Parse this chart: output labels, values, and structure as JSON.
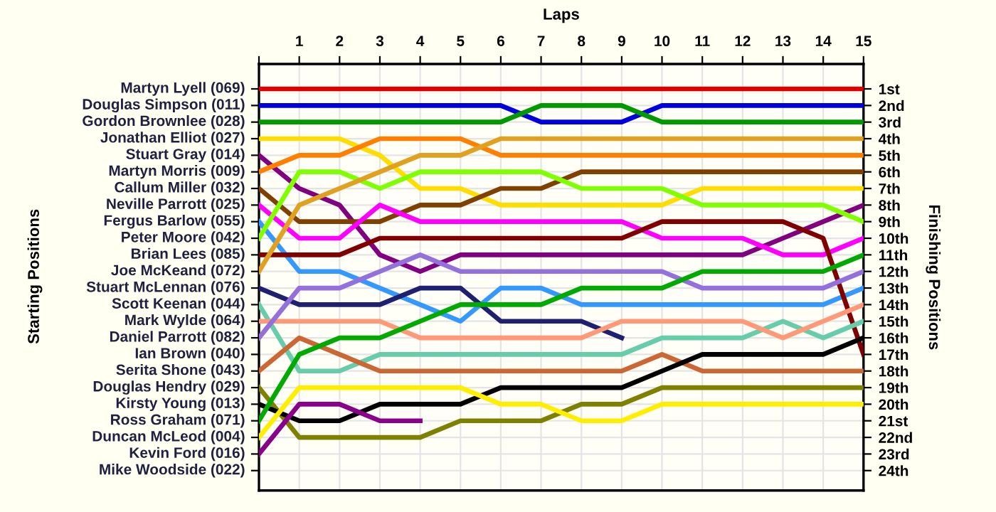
{
  "chart_data": {
    "type": "line",
    "xlabel": "Laps",
    "ylabel": "Finishing Positions",
    "x": [
      0,
      1,
      2,
      3,
      4,
      5,
      6,
      7,
      8,
      9,
      10,
      11,
      12,
      13,
      14,
      15
    ],
    "xlim": [
      0,
      15
    ],
    "xticks": [
      {
        "value": 0,
        "label": null
      },
      1,
      2,
      3,
      4,
      5,
      6,
      7,
      8,
      9,
      10,
      11,
      12,
      13,
      14,
      15
    ],
    "ylim": [
      25.2,
      -0.5
    ],
    "yticks": [
      {
        "value": 1,
        "label": "1st"
      },
      {
        "value": 2,
        "label": "2nd"
      },
      {
        "value": 3,
        "label": "3rd"
      },
      {
        "value": 4,
        "label": "4th"
      },
      {
        "value": 5,
        "label": "5th"
      },
      {
        "value": 6,
        "label": "6th"
      },
      {
        "value": 7,
        "label": "7th"
      },
      {
        "value": 8,
        "label": "8th"
      },
      {
        "value": 9,
        "label": "9th"
      },
      {
        "value": 10,
        "label": "10th"
      },
      {
        "value": 11,
        "label": "11th"
      },
      {
        "value": 12,
        "label": "12th"
      },
      {
        "value": 13,
        "label": "13th"
      },
      {
        "value": 14,
        "label": "14th"
      },
      {
        "value": 15,
        "label": "15th"
      },
      {
        "value": 16,
        "label": "16th"
      },
      {
        "value": 17,
        "label": "17th"
      },
      {
        "value": 18,
        "label": "18th"
      },
      {
        "value": 19,
        "label": "19th"
      },
      {
        "value": 20,
        "label": "20th"
      },
      {
        "value": 21,
        "label": "21st"
      },
      {
        "value": 22,
        "label": "22nd"
      },
      {
        "value": 23,
        "label": "23rd"
      },
      {
        "value": 24,
        "label": "24th"
      }
    ],
    "annotations": [
      "Starting Positions",
      "Martyn Lyell (069)",
      "Douglas Simpson (011)",
      "Gordon Brownlee (028)",
      "Jonathan Elliot (027)",
      "Stuart Gray (014)",
      "Martyn Morris (009)",
      "Callum Miller (032)",
      "Neville Parrott (025)",
      "Fergus Barlow (055)",
      "Peter Moore (042)",
      "Brian Lees (085)",
      "Joe McKeand (072)",
      "Stuart McLennan (076)",
      "Scott Keenan (044)",
      "Mark Wylde (064)",
      "Daniel Parrott (082)",
      "Ian Brown (040)",
      "Serita Shone (043)",
      "Douglas Hendry (029)",
      "Kirsty Young (013)",
      "Ross Graham (071)",
      "Duncan McLeod (004)",
      "Kevin Ford (016)",
      "Mike Woodside (022)"
    ],
    "grid": true,
    "marker": "none",
    "line_style": "solid",
    "series": [
      {
        "color": "#dd0000",
        "values": [
          1,
          1,
          1,
          1,
          1,
          1,
          1,
          1,
          1,
          1,
          1,
          1,
          1,
          1,
          1,
          1
        ]
      },
      {
        "color": "#0000dd",
        "values": [
          2,
          2,
          2,
          2,
          2,
          2,
          2,
          3,
          3,
          3,
          2,
          2,
          2,
          2,
          2,
          2
        ]
      },
      {
        "color": "#009900",
        "values": [
          3,
          3,
          3,
          3,
          3,
          3,
          3,
          2,
          2,
          2,
          3,
          3,
          3,
          3,
          3,
          3
        ]
      },
      {
        "color": "#ffdd00",
        "values": [
          4,
          4,
          4,
          5,
          7,
          7,
          8,
          8,
          8,
          8,
          8,
          7,
          7,
          7,
          7,
          7
        ]
      },
      {
        "color": "#800080",
        "values": [
          5,
          7,
          8,
          11,
          12,
          11,
          11,
          11,
          11,
          11,
          11,
          11,
          11,
          10,
          9,
          8
        ]
      },
      {
        "color": "#ff8000",
        "values": [
          6,
          5,
          5,
          4,
          4,
          4,
          5,
          5,
          5,
          5,
          5,
          5,
          5,
          5,
          5,
          5
        ]
      },
      {
        "color": "#804000",
        "values": [
          7,
          9,
          9,
          9,
          8,
          8,
          7,
          7,
          6,
          6,
          6,
          6,
          6,
          6,
          6,
          6
        ]
      },
      {
        "color": "#ff00ff",
        "values": [
          8,
          10,
          10,
          8,
          9,
          9,
          9,
          9,
          9,
          9,
          10,
          10,
          10,
          11,
          11,
          10
        ]
      },
      {
        "color": "#3399ff",
        "values": [
          9,
          12,
          12,
          13,
          14,
          15,
          13,
          13,
          14,
          14,
          14,
          14,
          14,
          14,
          14,
          13
        ]
      },
      {
        "color": "#80ff00",
        "values": [
          10,
          6,
          6,
          7,
          6,
          6,
          6,
          6,
          7,
          7,
          7,
          8,
          8,
          8,
          8,
          9
        ]
      },
      {
        "color": "#800000",
        "values": [
          11,
          11,
          11,
          10,
          10,
          10,
          10,
          10,
          10,
          10,
          9,
          9,
          9,
          9,
          10,
          17
        ]
      },
      {
        "color": "#e0a020",
        "values": [
          12,
          8,
          7,
          6,
          5,
          5,
          4,
          4,
          4,
          4,
          4,
          4,
          4,
          4,
          4,
          4
        ]
      },
      {
        "color": "#202070",
        "values": [
          13,
          14,
          14,
          14,
          13,
          13,
          15,
          15,
          15,
          16,
          null,
          null,
          null,
          null,
          null,
          null
        ]
      },
      {
        "color": "#66ccaa",
        "values": [
          14,
          18,
          18,
          17,
          17,
          17,
          17,
          17,
          17,
          17,
          16,
          16,
          16,
          15,
          16,
          15
        ]
      },
      {
        "color": "#ff9977",
        "values": [
          15,
          15,
          15,
          15,
          16,
          16,
          16,
          16,
          16,
          15,
          15,
          15,
          15,
          16,
          15,
          14
        ]
      },
      {
        "color": "#9370db",
        "values": [
          16,
          13,
          13,
          12,
          11,
          12,
          12,
          12,
          12,
          12,
          12,
          13,
          13,
          13,
          13,
          12
        ]
      },
      {
        "color": "#cc6633",
        "values": [
          18,
          16,
          17,
          18,
          18,
          18,
          18,
          18,
          18,
          18,
          17,
          18,
          18,
          18,
          18,
          18
        ]
      },
      {
        "color": "#808000",
        "values": [
          19,
          22,
          22,
          22,
          22,
          21,
          21,
          21,
          20,
          20,
          19,
          19,
          19,
          19,
          19,
          19
        ]
      },
      {
        "color": "#000000",
        "values": [
          20,
          21,
          21,
          20,
          20,
          20,
          19,
          19,
          19,
          19,
          18,
          17,
          17,
          17,
          17,
          16
        ]
      },
      {
        "color": "#00aa00",
        "values": [
          21,
          17,
          16,
          16,
          15,
          14,
          14,
          14,
          13,
          13,
          13,
          12,
          12,
          12,
          12,
          11
        ]
      },
      {
        "color": "#ffee00",
        "values": [
          22,
          19,
          19,
          19,
          19,
          19,
          20,
          20,
          21,
          21,
          20,
          20,
          20,
          20,
          20,
          20
        ]
      },
      {
        "color": "#8b008b",
        "values": [
          23,
          20,
          20,
          21,
          21,
          null,
          null,
          null,
          null,
          null,
          null,
          null,
          null,
          null,
          null,
          null
        ]
      }
    ]
  }
}
